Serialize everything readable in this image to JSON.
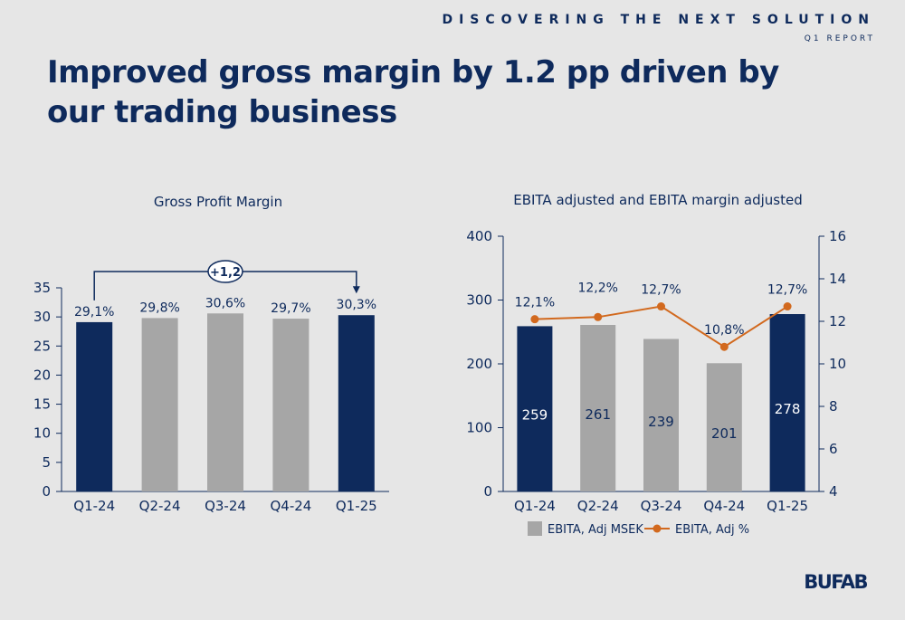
{
  "header": {
    "tagline": "DISCOVERING THE NEXT SOLUTION",
    "report": "Q1 REPORT"
  },
  "title": "Improved gross margin by 1.2 pp driven by our trading business",
  "logo": "BUFAB",
  "colors": {
    "navy": "#0e2a5c",
    "gray": "#a6a6a6",
    "orange": "#d2691e",
    "background": "#e6e6e6"
  },
  "chart_data": [
    {
      "type": "bar",
      "title": "Gross Profit Margin",
      "categories": [
        "Q1-24",
        "Q2-24",
        "Q3-24",
        "Q4-24",
        "Q1-25"
      ],
      "values": [
        29.1,
        29.8,
        30.6,
        29.7,
        30.3
      ],
      "value_labels": [
        "29,1%",
        "29,8%",
        "30,6%",
        "29,7%",
        "30,3%"
      ],
      "highlight": [
        true,
        false,
        false,
        false,
        true
      ],
      "ylim": [
        0,
        35
      ],
      "yticks": [
        0,
        5,
        10,
        15,
        20,
        25,
        30,
        35
      ],
      "annotation": {
        "text": "+1,2",
        "from": "Q1-24",
        "to": "Q1-25"
      }
    },
    {
      "type": "bar",
      "title": "EBITA adjusted and EBITA margin adjusted",
      "categories": [
        "Q1-24",
        "Q2-24",
        "Q3-24",
        "Q4-24",
        "Q1-25"
      ],
      "series": [
        {
          "name": "EBITA, Adj MSEK",
          "type": "bar",
          "values": [
            259,
            261,
            239,
            201,
            278
          ],
          "value_labels": [
            "259",
            "261",
            "239",
            "201",
            "278"
          ],
          "highlight": [
            true,
            false,
            false,
            false,
            true
          ]
        },
        {
          "name": "EBITA, Adj %",
          "type": "line",
          "axis": "right",
          "values": [
            12.1,
            12.2,
            12.7,
            10.8,
            12.7
          ],
          "value_labels": [
            "12,1%",
            "12,2%",
            "12,7%",
            "10,8%",
            "12,7%"
          ]
        }
      ],
      "ylim": [
        0,
        400
      ],
      "yticks": [
        0,
        100,
        200,
        300,
        400
      ],
      "y2lim": [
        4,
        16
      ],
      "y2ticks": [
        4,
        6,
        8,
        10,
        12,
        14,
        16
      ],
      "legend": "bottom"
    }
  ]
}
